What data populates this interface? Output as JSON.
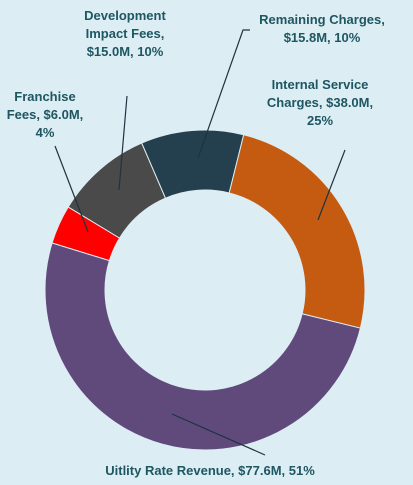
{
  "chart_data": {
    "type": "pie",
    "categories": [
      "Internal Service Charges, $38.0M, 25%",
      "Uitlity Rate Revenue, $77.6M, 51%",
      "Franchise Fees, $6.0M, 4%",
      "Development Impact Fees, $15.0M, 10%",
      "Remaining Charges, $15.8M, 10%"
    ],
    "values": [
      38.0,
      77.6,
      6.0,
      15.0,
      15.8
    ],
    "colors": [
      "#c55a11",
      "#604a7b",
      "#ff0000",
      "#4a4a4a",
      "#243f4d"
    ],
    "donut": true
  }
}
